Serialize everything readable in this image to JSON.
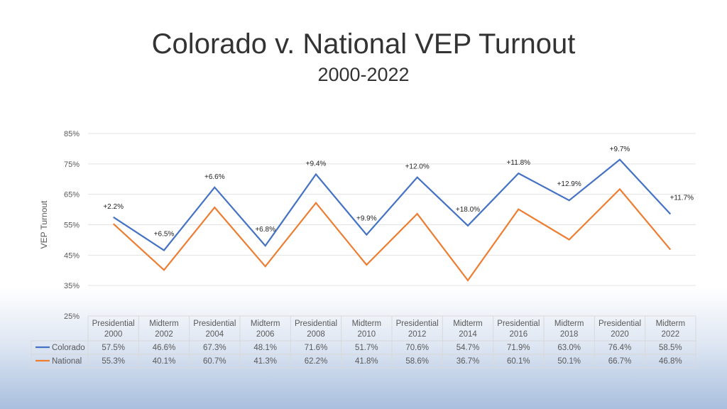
{
  "chart_data": {
    "type": "line",
    "title": "Colorado v. National VEP Turnout",
    "subtitle": "2000-2022",
    "ylabel": "VEP Turnout",
    "xlabel": "",
    "ylim": [
      25,
      85
    ],
    "yticks": [
      "25%",
      "35%",
      "45%",
      "55%",
      "65%",
      "75%",
      "85%"
    ],
    "ytick_values": [
      25,
      35,
      45,
      55,
      65,
      75,
      85
    ],
    "categories": [
      [
        "Presidential",
        "2000"
      ],
      [
        "Midterm",
        "2002"
      ],
      [
        "Presidential",
        "2004"
      ],
      [
        "Midterm",
        "2006"
      ],
      [
        "Presidential",
        "2008"
      ],
      [
        "Midterm",
        "2010"
      ],
      [
        "Presidential",
        "2012"
      ],
      [
        "Midterm",
        "2014"
      ],
      [
        "Presidential",
        "2016"
      ],
      [
        "Midterm",
        "2018"
      ],
      [
        "Presidential",
        "2020"
      ],
      [
        "Midterm",
        "2022"
      ]
    ],
    "grid": true,
    "legend": "data-table",
    "series": [
      {
        "name": "Colorado",
        "color": "#4472c4",
        "values": [
          57.5,
          46.6,
          67.3,
          48.1,
          71.6,
          51.7,
          70.6,
          54.7,
          71.9,
          63.0,
          76.4,
          58.5
        ],
        "table_labels": [
          "57.5%",
          "46.6%",
          "67.3%",
          "48.1%",
          "71.6%",
          "51.7%",
          "70.6%",
          "54.7%",
          "71.9%",
          "63.0%",
          "76.4%",
          "58.5%"
        ]
      },
      {
        "name": "National",
        "color": "#ed7d31",
        "values": [
          55.3,
          40.1,
          60.7,
          41.3,
          62.2,
          41.8,
          58.6,
          36.7,
          60.1,
          50.1,
          66.7,
          46.8
        ],
        "table_labels": [
          "55.3%",
          "40.1%",
          "60.7%",
          "41.3%",
          "62.2%",
          "41.8%",
          "58.6%",
          "36.7%",
          "60.1%",
          "50.1%",
          "66.7%",
          "46.8%"
        ]
      }
    ],
    "annotations": [
      "+2.2%",
      "+6.5%",
      "+6.6%",
      "+6.8%",
      "+9.4%",
      "+9.9%",
      "+12.0%",
      "+18.0%",
      "+11.8%",
      "+12.9%",
      "+9.7%",
      "+11.7%"
    ]
  }
}
